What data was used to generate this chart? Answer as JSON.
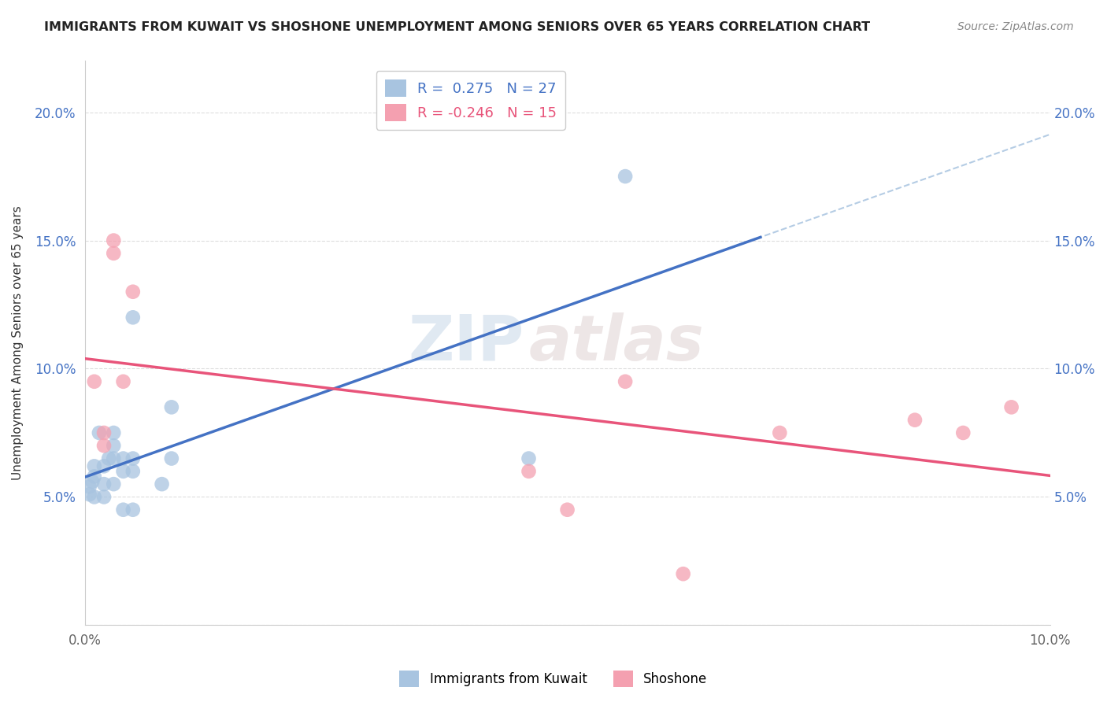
{
  "title": "IMMIGRANTS FROM KUWAIT VS SHOSHONE UNEMPLOYMENT AMONG SENIORS OVER 65 YEARS CORRELATION CHART",
  "source": "Source: ZipAtlas.com",
  "ylabel": "Unemployment Among Seniors over 65 years",
  "xlim": [
    0.0,
    0.1
  ],
  "ylim": [
    0.0,
    0.22
  ],
  "xticks": [
    0.0,
    0.02,
    0.04,
    0.06,
    0.08,
    0.1
  ],
  "xticklabels": [
    "0.0%",
    "",
    "",
    "",
    "",
    "10.0%"
  ],
  "yticks_left": [
    0.0,
    0.05,
    0.1,
    0.15,
    0.2
  ],
  "yticklabels_left": [
    "",
    "5.0%",
    "10.0%",
    "15.0%",
    "20.0%"
  ],
  "yticks_right": [
    0.05,
    0.1,
    0.15,
    0.2
  ],
  "yticklabels_right": [
    "5.0%",
    "10.0%",
    "15.0%",
    "20.0%"
  ],
  "blue_label": "Immigrants from Kuwait",
  "pink_label": "Shoshone",
  "R_blue": 0.275,
  "N_blue": 27,
  "R_pink": -0.246,
  "N_pink": 15,
  "blue_color": "#a8c4e0",
  "blue_line_color": "#4472c4",
  "blue_dash_color": "#a8c4e0",
  "pink_color": "#f4a0b0",
  "pink_line_color": "#e8547a",
  "watermark_zip": "ZIP",
  "watermark_atlas": "atlas",
  "blue_x": [
    0.0005,
    0.0005,
    0.0008,
    0.001,
    0.001,
    0.001,
    0.0015,
    0.002,
    0.002,
    0.002,
    0.0025,
    0.003,
    0.003,
    0.003,
    0.003,
    0.004,
    0.004,
    0.004,
    0.005,
    0.005,
    0.005,
    0.005,
    0.008,
    0.009,
    0.009,
    0.046,
    0.056
  ],
  "blue_y": [
    0.051,
    0.054,
    0.056,
    0.05,
    0.058,
    0.062,
    0.075,
    0.05,
    0.055,
    0.062,
    0.065,
    0.055,
    0.065,
    0.07,
    0.075,
    0.045,
    0.06,
    0.065,
    0.045,
    0.06,
    0.065,
    0.12,
    0.055,
    0.065,
    0.085,
    0.065,
    0.175
  ],
  "pink_x": [
    0.001,
    0.002,
    0.002,
    0.003,
    0.003,
    0.004,
    0.005,
    0.046,
    0.05,
    0.056,
    0.062,
    0.072,
    0.086,
    0.091,
    0.096
  ],
  "pink_y": [
    0.095,
    0.07,
    0.075,
    0.145,
    0.15,
    0.095,
    0.13,
    0.06,
    0.045,
    0.095,
    0.02,
    0.075,
    0.08,
    0.075,
    0.085
  ]
}
